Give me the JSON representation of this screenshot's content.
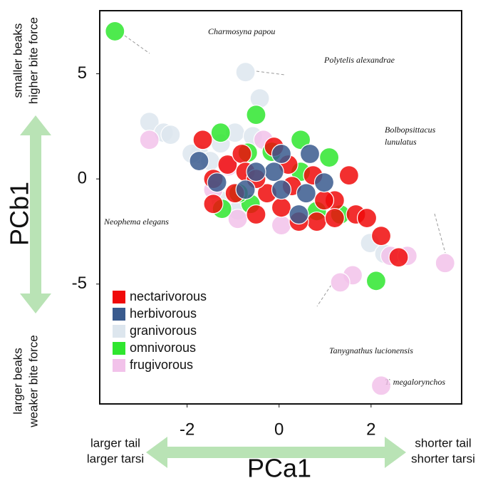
{
  "chart_data": {
    "type": "scatter",
    "x_label": "PCa1",
    "y_label": "PCb1",
    "y_top_note": [
      "smaller beaks",
      "higher bite force"
    ],
    "y_bottom_note": [
      "larger beaks",
      "weaker bite force"
    ],
    "x_left_note": [
      "larger tail",
      "larger tarsi"
    ],
    "x_right_note": [
      "shorter tail",
      "shorter tarsi"
    ],
    "annotations": [
      "Charmosyna papou",
      "Polytelis alexandrae",
      "Bolbopsittacus",
      "lunulatus",
      "Neophema elegans",
      "Tanygnathus lucionensis",
      "T. megalorynchos"
    ],
    "xlim": [
      -3.9,
      3.97
    ],
    "ylim": [
      -10.7,
      8
    ],
    "xticks": [
      -2,
      0,
      2
    ],
    "yticks": [
      5,
      0,
      -5
    ],
    "legend": "lower left",
    "series": [
      {
        "name": "granivorous",
        "color": "#dde6ee",
        "x": [
          -0.73,
          -0.42,
          -2.82,
          -2.51,
          -2.36,
          -1.74,
          -1.5,
          -1.27,
          -0.96,
          -0.57,
          -1.27,
          -0.9,
          1.98,
          2.29,
          -1.9
        ],
        "values": [
          5.08,
          3.83,
          2.71,
          2.2,
          2.1,
          1.19,
          0.85,
          1.69,
          2.2,
          2.03,
          -1.02,
          -1.5,
          -3.05,
          -3.56,
          1.2
        ]
      },
      {
        "name": "frugivorous",
        "color": "#f2c2ea",
        "x": [
          -2.82,
          -0.34,
          -1.43,
          0.05,
          2.42,
          2.79,
          3.61,
          1.6,
          1.33,
          2.22,
          -0.9,
          -1.1
        ],
        "values": [
          1.86,
          1.86,
          -0.51,
          -2.2,
          -3.66,
          -3.66,
          -4.0,
          -4.58,
          -4.92,
          -9.83,
          -1.9,
          0.6
        ]
      },
      {
        "name": "omnivorous",
        "color": "#2fe62f",
        "x": [
          -3.57,
          -0.5,
          0.47,
          1.09,
          -1.27,
          -0.68,
          -0.16,
          -1.24,
          -0.62,
          0.82,
          1.33,
          2.11,
          0.47,
          -0.88
        ],
        "values": [
          7.02,
          3.05,
          1.86,
          1.02,
          2.2,
          1.25,
          1.29,
          -1.42,
          -1.19,
          -1.53,
          -1.69,
          -4.85,
          0.34,
          -0.68
        ]
      },
      {
        "name": "nectarivorous",
        "color": "#f00a0a",
        "x": [
          -1.66,
          -1.12,
          -0.81,
          -0.11,
          -1.43,
          -0.5,
          0.28,
          0.74,
          1.52,
          1.21,
          1.67,
          1.91,
          2.22,
          2.6,
          0.82,
          0.43,
          -0.73,
          -0.26,
          -0.96,
          0.05,
          0.98,
          1.21,
          0.2,
          -0.5,
          -1.43
        ],
        "values": [
          1.86,
          0.68,
          1.19,
          1.53,
          -1.19,
          -1.69,
          -0.34,
          0.17,
          0.17,
          -1.02,
          -1.69,
          -1.86,
          -2.71,
          -3.73,
          -2.03,
          -2.03,
          0.34,
          -0.68,
          -0.68,
          -1.36,
          -1.02,
          -1.86,
          0.68,
          0.0,
          0.0
        ]
      },
      {
        "name": "herbivorous",
        "color": "#3a5b8e",
        "x": [
          0.05,
          0.67,
          -0.11,
          -0.5,
          0.05,
          0.59,
          0.98,
          -1.35,
          -1.74,
          0.43,
          -0.73
        ],
        "values": [
          1.19,
          1.19,
          0.34,
          0.34,
          -0.51,
          -0.68,
          -0.17,
          -0.17,
          0.85,
          -1.69,
          -0.51
        ]
      }
    ]
  }
}
